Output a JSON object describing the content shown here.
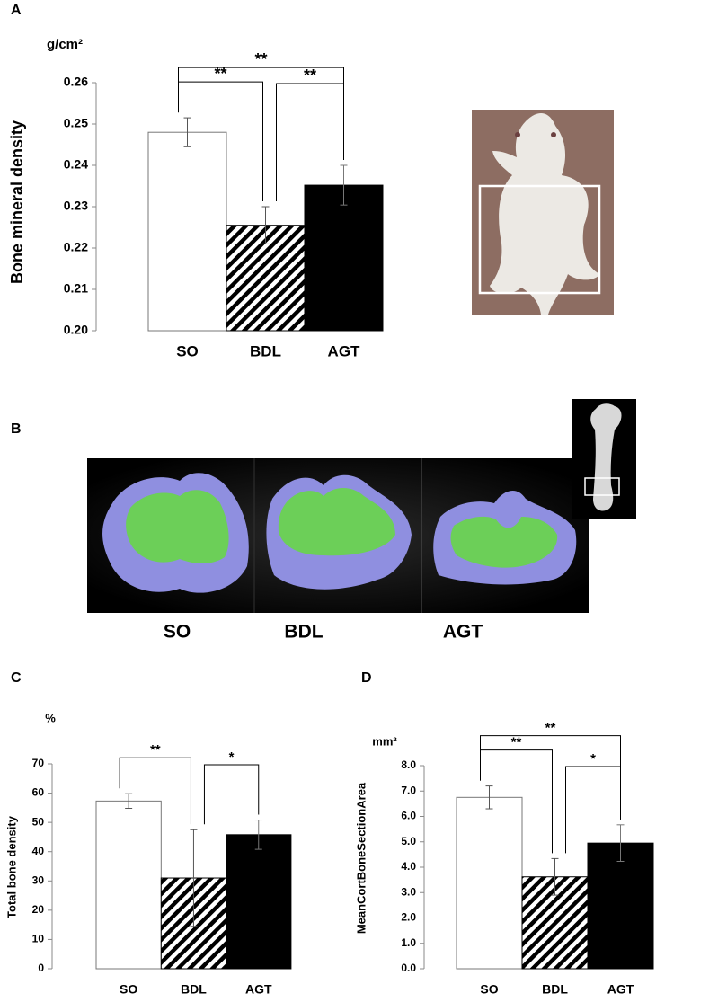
{
  "chart_data": [
    {
      "type": "bar",
      "panel_label": "A",
      "unit": "g/cm²",
      "y_label": "Bone mineral density",
      "categories": [
        "SO",
        "BDL",
        "AGT"
      ],
      "values": [
        0.248,
        0.2255,
        0.2352
      ],
      "errors": [
        0.0035,
        0.0045,
        0.0048
      ],
      "bar_styles": [
        "open",
        "hatched",
        "solid"
      ],
      "ylim": [
        0.2,
        0.26
      ],
      "yticks": [
        {
          "value": 0.2,
          "label": "0.20"
        },
        0.21,
        0.22,
        0.23,
        0.24,
        0.25,
        0.26
      ],
      "brackets": [
        {
          "from": "SO",
          "to": "BDL",
          "label": "**"
        },
        {
          "from": "BDL",
          "to": "AGT",
          "label": "**"
        },
        {
          "from": "SO",
          "to": "AGT",
          "label": "**"
        }
      ]
    },
    {
      "type": "bar",
      "panel_label": "C",
      "unit": "%",
      "y_label": "Total bone density",
      "categories": [
        "SO",
        "BDL",
        "AGT"
      ],
      "values": [
        57.3,
        31,
        45.8
      ],
      "errors": [
        2.5,
        16.5,
        5
      ],
      "bar_styles": [
        "open",
        "hatched",
        "solid"
      ],
      "ylim": [
        0,
        70
      ],
      "yticks": [
        0,
        10,
        20,
        30,
        40,
        50,
        60,
        70
      ],
      "brackets": [
        {
          "from": "SO",
          "to": "BDL",
          "label": "**"
        },
        {
          "from": "BDL",
          "to": "AGT",
          "label": "*"
        }
      ]
    },
    {
      "type": "bar",
      "panel_label": "D",
      "unit": "mm²",
      "y_label": "MeanCortBoneSectionArea",
      "categories": [
        "SO",
        "BDL",
        "AGT"
      ],
      "values": [
        6.75,
        3.62,
        4.95
      ],
      "errors": [
        0.45,
        0.72,
        0.72
      ],
      "bar_styles": [
        "open",
        "hatched",
        "solid"
      ],
      "ylim": [
        0,
        8
      ],
      "yticks": [
        {
          "value": 0,
          "label": "0.0"
        },
        {
          "value": 1,
          "label": "1.0"
        },
        {
          "value": 2,
          "label": "2.0"
        },
        {
          "value": 3,
          "label": "3.0"
        },
        {
          "value": 4,
          "label": "4.0"
        },
        {
          "value": 5,
          "label": "5.0"
        },
        {
          "value": 6,
          "label": "6.0"
        },
        {
          "value": 7,
          "label": "7.0"
        },
        {
          "value": 8,
          "label": "8.0"
        }
      ],
      "brackets": [
        {
          "from": "SO",
          "to": "BDL",
          "label": "**"
        },
        {
          "from": "BDL",
          "to": "AGT",
          "label": "*"
        },
        {
          "from": "SO",
          "to": "AGT",
          "label": "**"
        }
      ]
    }
  ],
  "panel_b": {
    "label": "B",
    "captions": [
      "SO",
      "BDL",
      "AGT"
    ]
  }
}
